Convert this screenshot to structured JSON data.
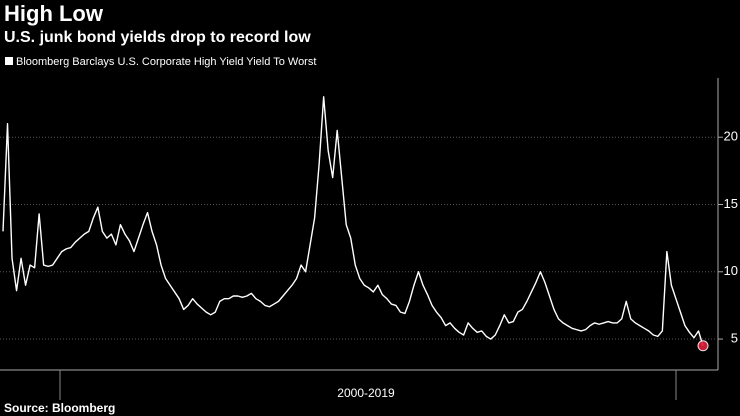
{
  "chart_data": {
    "type": "line",
    "title": "High Low",
    "subtitle": "U.S. junk bond yields drop to record low",
    "source": "Source: Bloomberg",
    "xlabel": "2000-2019",
    "series": [
      {
        "name": "Bloomberg Barclays U.S. Corporate High Yield Yield To Worst",
        "color": "#ffffff",
        "values": [
          13,
          21,
          11,
          8.6,
          11,
          9,
          10.5,
          10.3,
          14.3,
          10.5,
          10.4,
          10.5,
          11,
          11.5,
          11.7,
          11.8,
          12.2,
          12.5,
          12.8,
          13,
          14,
          14.8,
          13,
          12.5,
          12.8,
          12,
          13.5,
          12.8,
          12.3,
          11.5,
          12.5,
          13.5,
          14.4,
          13,
          12,
          10.5,
          9.5,
          9,
          8.5,
          8,
          7.2,
          7.5,
          8,
          7.6,
          7.3,
          7,
          6.8,
          7,
          7.8,
          8,
          8,
          8.2,
          8.2,
          8.1,
          8.2,
          8.4,
          8,
          7.8,
          7.5,
          7.4,
          7.6,
          7.8,
          8.2,
          8.6,
          9,
          9.5,
          10.5,
          10,
          12,
          14,
          18,
          23,
          19,
          17,
          20.5,
          17,
          13.5,
          12.5,
          10.5,
          9.5,
          9,
          8.8,
          8.5,
          9,
          8.3,
          8,
          7.6,
          7.5,
          7,
          6.9,
          7.8,
          9,
          10,
          9,
          8.3,
          7.5,
          7,
          6.6,
          6,
          6.2,
          5.8,
          5.5,
          5.3,
          6.2,
          5.8,
          5.5,
          5.6,
          5.2,
          5,
          5.3,
          6,
          6.8,
          6.2,
          6.3,
          7,
          7.2,
          7.8,
          8.5,
          9.2,
          10,
          9.2,
          8.2,
          7.2,
          6.5,
          6.2,
          6,
          5.8,
          5.7,
          5.6,
          5.7,
          6,
          6.2,
          6.1,
          6.2,
          6.3,
          6.2,
          6.2,
          6.5,
          7.8,
          6.5,
          6.2,
          6,
          5.8,
          5.6,
          5.3,
          5.2,
          5.6,
          11.5,
          9,
          8,
          7,
          6,
          5.5,
          5.1,
          5.6,
          4.5
        ]
      }
    ],
    "ylim": [
      2.7,
      24.4
    ],
    "yticks": [
      5,
      10,
      15,
      20
    ],
    "grid": true,
    "highlight_color": "#e0203a"
  }
}
